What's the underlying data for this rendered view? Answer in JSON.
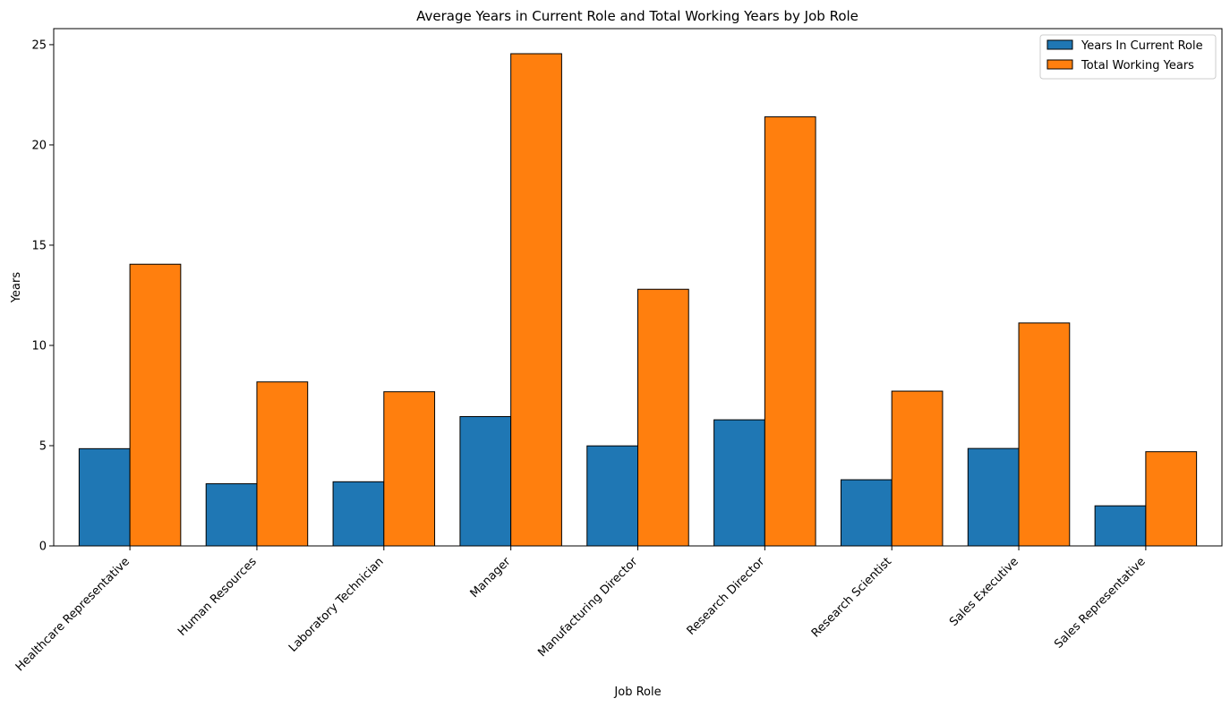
{
  "chart_data": {
    "type": "bar",
    "title": "Average Years in Current Role and Total Working Years by Job Role",
    "xlabel": "Job Role",
    "ylabel": "Years",
    "ylim": [
      0,
      25.8
    ],
    "yticks": [
      0,
      5,
      10,
      15,
      20,
      25
    ],
    "grid": false,
    "legend_position": "top-right",
    "categories": [
      "Healthcare Representative",
      "Human Resources",
      "Laboratory Technician",
      "Manager",
      "Manufacturing Director",
      "Research Director",
      "Research Scientist",
      "Sales Executive",
      "Sales Representative"
    ],
    "series": [
      {
        "name": "Years In Current Role",
        "color": "#1f77b4",
        "values": [
          4.85,
          3.1,
          3.2,
          6.45,
          4.99,
          6.29,
          3.3,
          4.86,
          2.0
        ]
      },
      {
        "name": "Total Working Years",
        "color": "#ff7f0e",
        "values": [
          14.05,
          8.18,
          7.69,
          24.55,
          12.8,
          21.4,
          7.72,
          11.12,
          4.7
        ]
      }
    ]
  }
}
